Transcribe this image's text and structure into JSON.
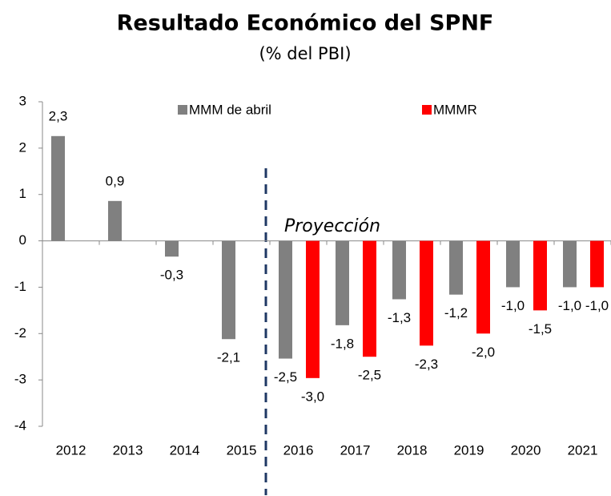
{
  "chart_data": {
    "type": "bar",
    "title": "Resultado Económico del SPNF",
    "subtitle": "(% del PBI)",
    "annotation": "Proyección",
    "categories": [
      "2012",
      "2013",
      "2014",
      "2015",
      "2016",
      "2017",
      "2018",
      "2019",
      "2020",
      "2021"
    ],
    "series": [
      {
        "name": "MMM de abril",
        "color": "#808080",
        "values": [
          2.26,
          0.86,
          -0.34,
          -2.12,
          -2.54,
          -1.82,
          -1.26,
          -1.16,
          -1.0,
          -1.0
        ],
        "value_labels": [
          "2,3",
          "0,9",
          "-0,3",
          "-2,1",
          "-2,5",
          "-1,8",
          "-1,3",
          "-1,2",
          "-1,0",
          "-1,0"
        ]
      },
      {
        "name": "MMMR",
        "color": "#ff0000",
        "values": [
          null,
          null,
          null,
          null,
          -2.96,
          -2.5,
          -2.26,
          -2.0,
          -1.5,
          -1.0
        ],
        "value_labels": [
          null,
          null,
          null,
          null,
          "-3,0",
          "-2,5",
          "-2,3",
          "-2,0",
          "-1,5",
          "-1,0"
        ]
      }
    ],
    "ylim": [
      -4,
      3
    ],
    "yticks": [
      -4,
      -3,
      -2,
      -1,
      0,
      1,
      2,
      3
    ],
    "grid": false,
    "legend": "top"
  }
}
